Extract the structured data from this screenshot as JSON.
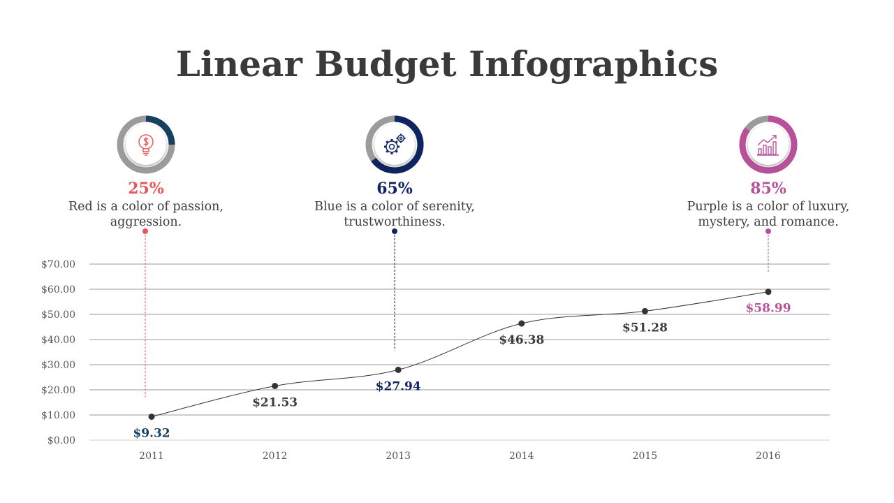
{
  "title": "Linear Budget Infographics",
  "colors": {
    "red": "#e8555a",
    "blue": "#0f2560",
    "purple": "#b8509a",
    "gray": "#9b9b9b",
    "teal_dark": "#16405f",
    "text": "#3d3d3d",
    "line": "#333333"
  },
  "cards": [
    {
      "percent": "25%",
      "fraction": 0.25,
      "icon": "dollar-bulb-icon",
      "color": "#e8555a",
      "arc_color": "#16405f",
      "line1": "Red is a color of passion,",
      "line2": "aggression."
    },
    {
      "percent": "65%",
      "fraction": 0.65,
      "icon": "gears-icon",
      "color": "#0f2560",
      "arc_color": "#0f2560",
      "line1": "Blue is a color of serenity,",
      "line2": "trustworthiness."
    },
    {
      "percent": "85%",
      "fraction": 0.85,
      "icon": "bar-chart-growth-icon",
      "color": "#b8509a",
      "arc_color": "#b8509a",
      "line1": "Purple is a color of luxury,",
      "line2": "mystery, and romance."
    }
  ],
  "chart_data": {
    "type": "line",
    "categories": [
      "2011",
      "2012",
      "2013",
      "2014",
      "2015",
      "2016"
    ],
    "values": [
      9.32,
      21.53,
      27.94,
      46.38,
      51.28,
      58.99
    ],
    "value_labels": [
      "$9.32",
      "$21.53",
      "$27.94",
      "$46.38",
      "$51.28",
      "$58.99"
    ],
    "value_label_colors": [
      "#16405f",
      "#3d3d3d",
      "#0f2560",
      "#3d3d3d",
      "#3d3d3d",
      "#b8509a"
    ],
    "y_ticks": [
      0,
      10,
      20,
      30,
      40,
      50,
      60,
      70
    ],
    "y_tick_labels": [
      "$0.00",
      "$10.00",
      "$20.00",
      "$30.00",
      "$40.00",
      "$50.00",
      "$60.00",
      "$70.00"
    ],
    "ylim": [
      0,
      70
    ],
    "grid": true,
    "highlighted_categories": [
      "2011",
      "2013",
      "2016"
    ]
  }
}
